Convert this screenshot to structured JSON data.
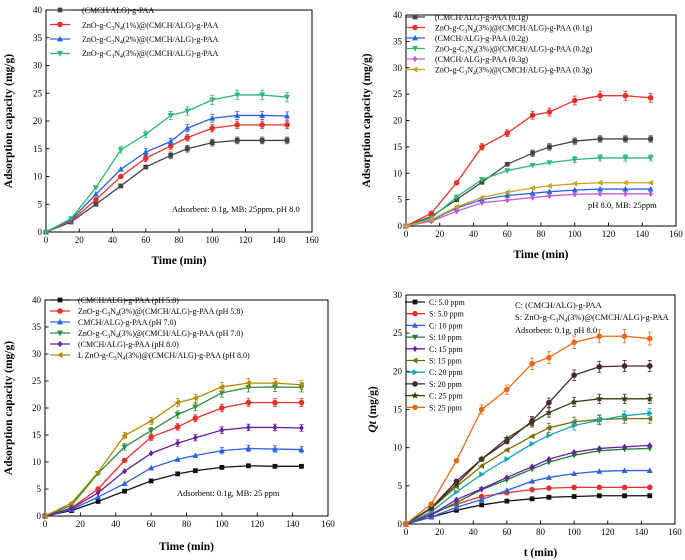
{
  "chart_data": [
    {
      "type": "line",
      "xlabel": "Time (min)",
      "ylabel": "Adsorption capacity (mg/g)",
      "xlim": [
        0,
        160
      ],
      "ylim": [
        0,
        40
      ],
      "xticks": [
        0,
        20,
        40,
        60,
        80,
        100,
        120,
        140,
        160
      ],
      "yticks": [
        0,
        5,
        10,
        15,
        20,
        25,
        30,
        35,
        40
      ],
      "annotation": "Adsorbent: 0.1g, MB: 25ppm, pH 8.0",
      "legend": "top-left",
      "series": [
        {
          "name": "(CMCH/ALG)-g-PAA",
          "color": "#444444",
          "marker": "square",
          "x": [
            0,
            15,
            30,
            45,
            60,
            75,
            85,
            100,
            115,
            130,
            145
          ],
          "values": [
            0,
            1.8,
            5.0,
            8.3,
            11.7,
            13.8,
            15.0,
            16.1,
            16.5,
            16.5,
            16.5
          ]
        },
        {
          "name": "ZnO-g-C3N4(1%)@(CMCH/ALG)-g-PAA",
          "color": "#e8302a",
          "marker": "circle",
          "x": [
            0,
            15,
            30,
            45,
            60,
            75,
            85,
            100,
            115,
            130,
            145
          ],
          "values": [
            0,
            2.0,
            5.8,
            10.0,
            13.3,
            15.5,
            17.0,
            18.7,
            19.3,
            19.3,
            19.3
          ]
        },
        {
          "name": "ZnO-g-C3N4(2%)@(CMCH/ALG)-g-PAA",
          "color": "#2a63e0",
          "marker": "triangle",
          "x": [
            0,
            15,
            30,
            45,
            60,
            75,
            85,
            100,
            115,
            130,
            145
          ],
          "values": [
            0,
            2.2,
            6.8,
            11.3,
            14.4,
            16.3,
            18.7,
            20.5,
            21.0,
            21.0,
            20.9
          ]
        },
        {
          "name": "ZnO-g-C3N4(3%)@(CMCH/ALG)-g-PAA",
          "color": "#2eb872",
          "marker": "triangle-down",
          "x": [
            0,
            15,
            30,
            45,
            60,
            75,
            85,
            100,
            115,
            130,
            145
          ],
          "values": [
            0,
            2.4,
            8.0,
            14.8,
            17.6,
            21.0,
            21.8,
            23.8,
            24.7,
            24.7,
            24.3
          ]
        }
      ]
    },
    {
      "type": "line",
      "xlabel": "Time (min)",
      "ylabel": "Adsorption capacity (mg/g)",
      "xlim": [
        0,
        160
      ],
      "ylim": [
        0,
        40
      ],
      "xticks": [
        0,
        20,
        40,
        60,
        80,
        100,
        120,
        140,
        160
      ],
      "yticks": [
        0,
        5,
        10,
        15,
        20,
        25,
        30,
        35,
        40
      ],
      "annotation": "pH 8.0, MB: 25ppm",
      "legend": "top-left",
      "series": [
        {
          "name": "(CMCH/ALG)-g-PAA (0.1g)",
          "color": "#444444",
          "marker": "square",
          "x": [
            0,
            15,
            30,
            45,
            60,
            75,
            85,
            100,
            115,
            130,
            145
          ],
          "values": [
            0,
            1.8,
            5.0,
            8.3,
            11.7,
            13.8,
            15.0,
            16.1,
            16.5,
            16.5,
            16.5
          ]
        },
        {
          "name": "ZnO-g-C3N4(3%)@(CMCH/ALG)-g-PAA (0.1g)",
          "color": "#e8302a",
          "marker": "circle",
          "x": [
            0,
            15,
            30,
            45,
            60,
            75,
            85,
            100,
            115,
            130,
            145
          ],
          "values": [
            0,
            2.4,
            8.2,
            15.0,
            17.6,
            21.0,
            21.6,
            23.8,
            24.7,
            24.7,
            24.3
          ]
        },
        {
          "name": "(CMCH/ALG)-g-PAA (0.2g)",
          "color": "#2a63e0",
          "marker": "triangle",
          "x": [
            0,
            15,
            30,
            45,
            60,
            75,
            85,
            100,
            115,
            130,
            145
          ],
          "values": [
            0,
            1.1,
            3.4,
            5.0,
            5.8,
            6.2,
            6.5,
            6.8,
            7.0,
            7.0,
            7.0
          ]
        },
        {
          "name": "ZnO-g-C3N4(3%)@(CMCH/ALG)-g-PAA (0.2g)",
          "color": "#2eb872",
          "marker": "triangle-down",
          "x": [
            0,
            15,
            30,
            45,
            60,
            75,
            85,
            100,
            115,
            130,
            145
          ],
          "values": [
            0,
            1.5,
            5.5,
            8.8,
            10.5,
            11.5,
            12.0,
            12.6,
            12.9,
            12.9,
            12.9
          ]
        },
        {
          "name": "(CMCH/ALG)-g-PAA (0.3g)",
          "color": "#c45bd6",
          "marker": "diamond",
          "x": [
            0,
            15,
            30,
            45,
            60,
            75,
            85,
            100,
            115,
            130,
            145
          ],
          "values": [
            0,
            0.9,
            2.8,
            4.4,
            4.9,
            5.4,
            5.7,
            6.0,
            6.1,
            6.1,
            6.1
          ]
        },
        {
          "name": "ZnO-g-C3N4(3%)@(CMCH/ALG)-g-PAA (0.3g)",
          "color": "#c9a227",
          "marker": "triangle-left",
          "x": [
            0,
            15,
            30,
            45,
            60,
            75,
            85,
            100,
            115,
            130,
            145
          ],
          "values": [
            0,
            1.2,
            3.6,
            5.4,
            6.4,
            7.2,
            7.6,
            8.0,
            8.2,
            8.2,
            8.2
          ]
        }
      ]
    },
    {
      "type": "line",
      "xlabel": "Time (min)",
      "ylabel": "Adsorption capacity (mg/g)",
      "xlim": [
        0,
        160
      ],
      "ylim": [
        0,
        40
      ],
      "xticks": [
        0,
        20,
        40,
        60,
        80,
        100,
        120,
        140,
        160
      ],
      "yticks": [
        0,
        5,
        10,
        15,
        20,
        25,
        30,
        35,
        40
      ],
      "annotation": "Adsorbent: 0.1g, MB: 25 ppm",
      "legend": "top-left",
      "series": [
        {
          "name": "(CMCH/ALG)-g-PAA (pH 5.8)",
          "color": "#111111",
          "marker": "square",
          "x": [
            0,
            15,
            30,
            45,
            60,
            75,
            85,
            100,
            115,
            130,
            145
          ],
          "values": [
            0,
            1.0,
            2.7,
            4.6,
            6.5,
            7.8,
            8.4,
            9.0,
            9.3,
            9.2,
            9.2
          ]
        },
        {
          "name": "ZnO-g-C3N4(3%)@(CMCH/ALG)-g-PAA (pH 5.8)",
          "color": "#e8302a",
          "marker": "circle",
          "x": [
            0,
            15,
            30,
            45,
            60,
            75,
            85,
            100,
            115,
            130,
            145
          ],
          "values": [
            0,
            1.5,
            5.0,
            10.3,
            14.6,
            16.5,
            18.1,
            20.0,
            21.0,
            21.0,
            21.0
          ]
        },
        {
          "name": "CMCH/ALG)-g-PAA (pH 7.0)",
          "color": "#2a63e0",
          "marker": "triangle",
          "x": [
            0,
            15,
            30,
            45,
            60,
            75,
            85,
            100,
            115,
            130,
            145
          ],
          "values": [
            0,
            1.2,
            3.5,
            6.0,
            8.9,
            10.5,
            11.2,
            12.1,
            12.5,
            12.4,
            12.3
          ]
        },
        {
          "name": "ZnO-g-C3N4(3%)@(CMCH/ALG)-g-PAA (pH 7.0)",
          "color": "#2e8b3e",
          "marker": "triangle-down",
          "x": [
            0,
            15,
            30,
            45,
            60,
            75,
            85,
            100,
            115,
            130,
            145
          ],
          "values": [
            0,
            2.0,
            7.9,
            12.8,
            15.8,
            18.8,
            20.2,
            22.8,
            23.8,
            23.9,
            23.8
          ]
        },
        {
          "name": "(CMCH/ALG)-g-PAA (pH 8.0)",
          "color": "#6a1fa0",
          "marker": "diamond",
          "x": [
            0,
            15,
            30,
            45,
            60,
            75,
            85,
            100,
            115,
            130,
            145
          ],
          "values": [
            0,
            1.4,
            4.3,
            8.3,
            11.6,
            13.5,
            14.5,
            15.9,
            16.4,
            16.4,
            16.3
          ]
        },
        {
          "name": "L ZnO-g-C3N4(3%)@(CMCH/ALG)-g-PAA (pH 8.0)",
          "color": "#b58a00",
          "marker": "triangle-left",
          "x": [
            0,
            15,
            30,
            45,
            60,
            75,
            85,
            100,
            115,
            130,
            145
          ],
          "values": [
            0,
            2.4,
            8.1,
            14.9,
            17.6,
            21.0,
            21.8,
            23.9,
            24.6,
            24.6,
            24.3
          ]
        }
      ]
    },
    {
      "type": "line",
      "xlabel": "t (min)",
      "ylabel": "Qt (mg/g)",
      "xlim": [
        0,
        160
      ],
      "ylim": [
        0,
        30
      ],
      "xticks": [
        0,
        20,
        40,
        60,
        80,
        100,
        120,
        140,
        160
      ],
      "yticks": [
        0,
        5,
        10,
        15,
        20,
        25,
        30
      ],
      "annotation": [
        "C: (CMCH/ALG)-g-PAA",
        "S: ZnO-g-C3N4(3%)@(CMCH/ALG)-g-PAA",
        "Adsorbent: 0.1g, pH 8.0"
      ],
      "legend": "top-left",
      "series": [
        {
          "name": "C: 5.0 ppm",
          "color": "#111111",
          "marker": "square",
          "x": [
            0,
            15,
            30,
            45,
            60,
            75,
            85,
            100,
            115,
            130,
            145
          ],
          "values": [
            0,
            0.9,
            1.8,
            2.5,
            3.0,
            3.3,
            3.5,
            3.6,
            3.7,
            3.7,
            3.7
          ]
        },
        {
          "name": "S: 5.0 ppm",
          "color": "#e8302a",
          "marker": "circle",
          "x": [
            0,
            15,
            30,
            45,
            60,
            75,
            85,
            100,
            115,
            130,
            145
          ],
          "values": [
            0,
            1.4,
            2.6,
            3.6,
            4.1,
            4.5,
            4.7,
            4.8,
            4.8,
            4.8,
            4.8
          ]
        },
        {
          "name": "C: 10 ppm",
          "color": "#2a63e0",
          "marker": "triangle",
          "x": [
            0,
            15,
            30,
            45,
            60,
            75,
            85,
            100,
            115,
            130,
            145
          ],
          "values": [
            0,
            0.9,
            2.2,
            3.2,
            4.4,
            5.6,
            6.1,
            6.6,
            6.9,
            7.0,
            7.0
          ]
        },
        {
          "name": "S: 10 ppm",
          "color": "#1f7a33",
          "marker": "triangle-down",
          "x": [
            0,
            15,
            30,
            45,
            60,
            75,
            85,
            100,
            115,
            130,
            145
          ],
          "values": [
            0,
            1.2,
            2.8,
            4.5,
            5.8,
            7.2,
            8.1,
            9.0,
            9.6,
            9.8,
            9.9
          ]
        },
        {
          "name": "C: 15 ppm",
          "color": "#6a1fa0",
          "marker": "diamond",
          "x": [
            0,
            15,
            30,
            45,
            60,
            75,
            85,
            100,
            115,
            130,
            145
          ],
          "values": [
            0,
            1.2,
            3.2,
            4.6,
            6.1,
            7.5,
            8.5,
            9.4,
            9.9,
            10.1,
            10.3
          ]
        },
        {
          "name": "S: 15 ppm",
          "color": "#7a6a00",
          "marker": "triangle-left",
          "x": [
            0,
            15,
            30,
            45,
            60,
            75,
            85,
            100,
            115,
            130,
            145
          ],
          "values": [
            0,
            2.0,
            4.9,
            7.6,
            9.7,
            11.5,
            12.6,
            13.4,
            13.7,
            13.8,
            13.8
          ]
        },
        {
          "name": "C: 20 ppm",
          "color": "#16a3b8",
          "marker": "triangle-right",
          "x": [
            0,
            15,
            30,
            45,
            60,
            75,
            85,
            100,
            115,
            130,
            145
          ],
          "values": [
            0,
            1.6,
            4.2,
            6.5,
            8.5,
            10.5,
            11.6,
            12.9,
            13.6,
            14.2,
            14.5
          ]
        },
        {
          "name": "S: 20 ppm",
          "color": "#4a2040",
          "marker": "circle",
          "x": [
            0,
            15,
            30,
            45,
            60,
            75,
            85,
            100,
            115,
            130,
            145
          ],
          "values": [
            0,
            2.1,
            5.6,
            8.5,
            10.8,
            13.5,
            15.9,
            19.5,
            20.6,
            20.7,
            20.7
          ]
        },
        {
          "name": "C: 25 ppm",
          "color": "#3d3d10",
          "marker": "star",
          "x": [
            0,
            15,
            30,
            45,
            60,
            75,
            85,
            100,
            115,
            130,
            145
          ],
          "values": [
            0,
            2.1,
            5.2,
            8.5,
            11.2,
            13.3,
            14.6,
            16.0,
            16.4,
            16.4,
            16.4
          ]
        },
        {
          "name": "S: 25 ppm",
          "color": "#e86a17",
          "marker": "circle",
          "x": [
            0,
            15,
            30,
            45,
            60,
            75,
            85,
            100,
            115,
            130,
            145
          ],
          "values": [
            0,
            2.6,
            8.3,
            15.0,
            17.6,
            21.0,
            21.8,
            23.8,
            24.6,
            24.6,
            24.3
          ]
        }
      ]
    }
  ]
}
